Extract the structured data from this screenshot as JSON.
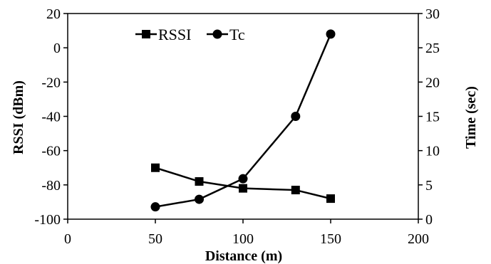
{
  "chart_data": {
    "type": "line",
    "xlabel": "Distance (m)",
    "ylabel": "RSSI (dBm)",
    "y2label": "Time (sec)",
    "xlim": [
      0,
      200
    ],
    "ylim": [
      -100,
      20
    ],
    "y2lim": [
      0,
      30
    ],
    "xticks": [
      "0",
      "50",
      "100",
      "150",
      "200"
    ],
    "yticks": [
      "20",
      "0",
      "-20",
      "-40",
      "-60",
      "-80",
      "-100"
    ],
    "y2ticks": [
      "30",
      "25",
      "20",
      "15",
      "10",
      "5",
      "0"
    ],
    "grid": false,
    "legend_position": "top-center",
    "series": [
      {
        "name": "RSSI",
        "axis": "left",
        "marker": "square",
        "color": "#000000",
        "x": [
          50,
          75,
          100,
          130,
          150
        ],
        "y": [
          -70,
          -78,
          -82,
          -83,
          -88
        ]
      },
      {
        "name": "Tc",
        "axis": "right",
        "marker": "circle",
        "color": "#000000",
        "x": [
          50,
          75,
          100,
          130,
          150
        ],
        "y": [
          1.8,
          2.9,
          5.9,
          15,
          27
        ]
      }
    ]
  }
}
